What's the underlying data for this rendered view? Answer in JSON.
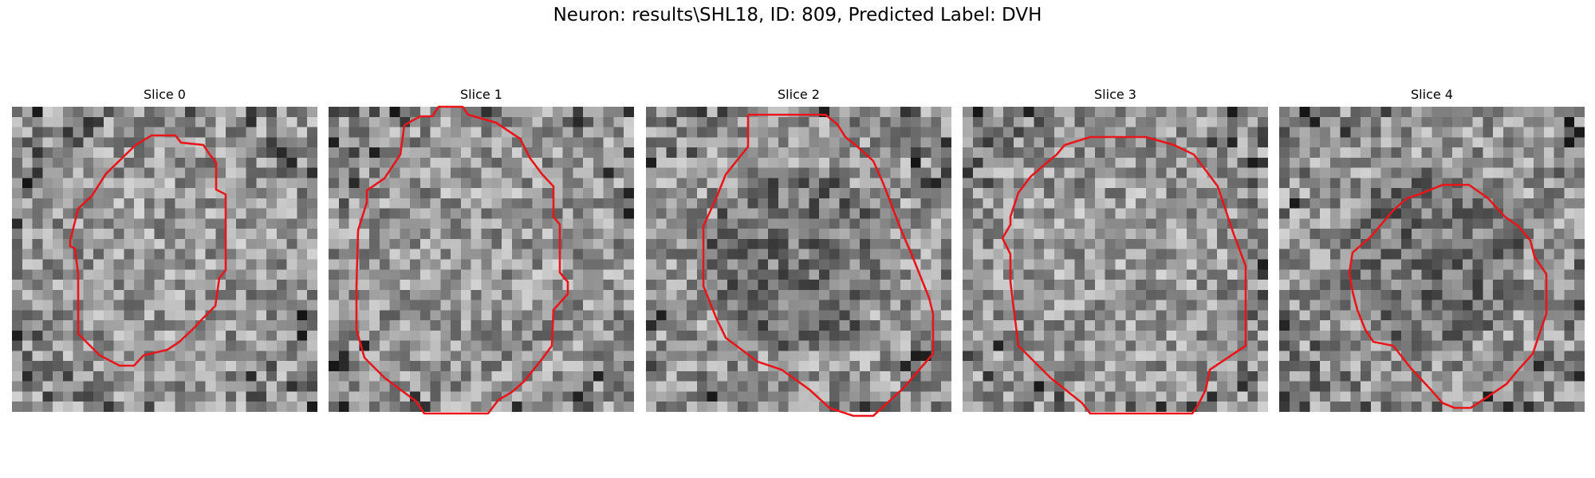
{
  "figure": {
    "title": "Neuron: results\\SHL18, ID: 809, Predicted Label: DVH",
    "contour_color": "#e8161b",
    "colormap": "gray",
    "slices": [
      {
        "title": "Slice 0",
        "seed": 11,
        "center_dark": false
      },
      {
        "title": "Slice 1",
        "seed": 23,
        "center_dark": false
      },
      {
        "title": "Slice 2",
        "seed": 37,
        "center_dark": true
      },
      {
        "title": "Slice 3",
        "seed": 53,
        "center_dark": false
      },
      {
        "title": "Slice 4",
        "seed": 71,
        "center_dark": true
      }
    ]
  }
}
